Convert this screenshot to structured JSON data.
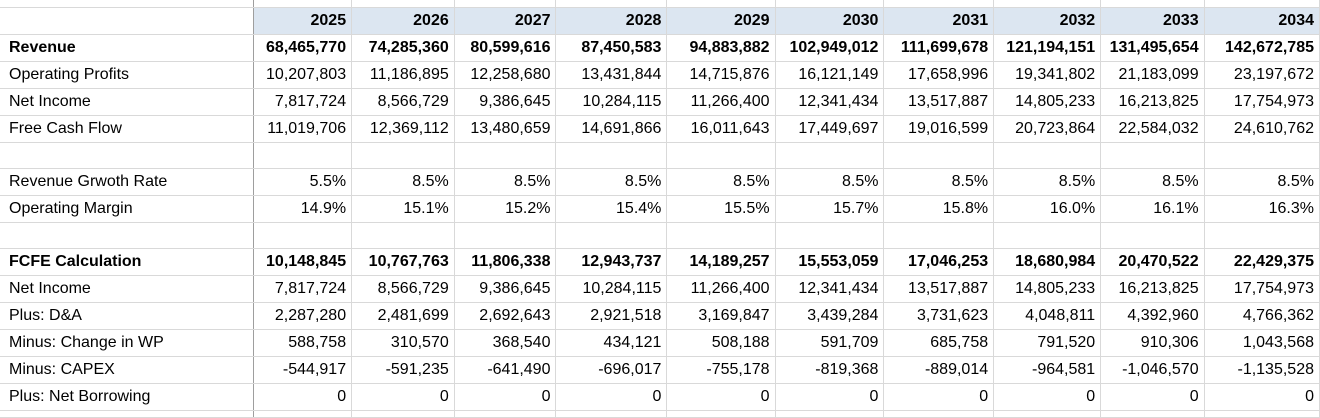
{
  "years": [
    "2025",
    "2026",
    "2027",
    "2028",
    "2029",
    "2030",
    "2031",
    "2032",
    "2033",
    "2034"
  ],
  "rows": [
    {
      "key": "revenue",
      "label": "Revenue",
      "bold": true,
      "values": [
        "68,465,770",
        "74,285,360",
        "80,599,616",
        "87,450,583",
        "94,883,882",
        "102,949,012",
        "111,699,678",
        "121,194,151",
        "131,495,654",
        "142,672,785"
      ]
    },
    {
      "key": "operating-profits",
      "label": "Operating Profits",
      "bold": false,
      "values": [
        "10,207,803",
        "11,186,895",
        "12,258,680",
        "13,431,844",
        "14,715,876",
        "16,121,149",
        "17,658,996",
        "19,341,802",
        "21,183,099",
        "23,197,672"
      ]
    },
    {
      "key": "net-income",
      "label": "Net Income",
      "bold": false,
      "values": [
        "7,817,724",
        "8,566,729",
        "9,386,645",
        "10,284,115",
        "11,266,400",
        "12,341,434",
        "13,517,887",
        "14,805,233",
        "16,213,825",
        "17,754,973"
      ]
    },
    {
      "key": "free-cash-flow",
      "label": "Free Cash Flow",
      "bold": false,
      "values": [
        "11,019,706",
        "12,369,112",
        "13,480,659",
        "14,691,866",
        "16,011,643",
        "17,449,697",
        "19,016,599",
        "20,723,864",
        "22,584,032",
        "24,610,762"
      ]
    },
    {
      "key": "blank-1",
      "label": "",
      "bold": false,
      "values": [
        "",
        "",
        "",
        "",
        "",
        "",
        "",
        "",
        "",
        ""
      ]
    },
    {
      "key": "revenue-growth-rate",
      "label": "Revenue Grwoth Rate",
      "bold": false,
      "values": [
        "5.5%",
        "8.5%",
        "8.5%",
        "8.5%",
        "8.5%",
        "8.5%",
        "8.5%",
        "8.5%",
        "8.5%",
        "8.5%"
      ]
    },
    {
      "key": "operating-margin",
      "label": "Operating Margin",
      "bold": false,
      "values": [
        "14.9%",
        "15.1%",
        "15.2%",
        "15.4%",
        "15.5%",
        "15.7%",
        "15.8%",
        "16.0%",
        "16.1%",
        "16.3%"
      ]
    },
    {
      "key": "blank-2",
      "label": "",
      "bold": false,
      "values": [
        "",
        "",
        "",
        "",
        "",
        "",
        "",
        "",
        "",
        ""
      ]
    },
    {
      "key": "fcfe-calculation",
      "label": "FCFE Calculation",
      "bold": true,
      "values": [
        "10,148,845",
        "10,767,763",
        "11,806,338",
        "12,943,737",
        "14,189,257",
        "15,553,059",
        "17,046,253",
        "18,680,984",
        "20,470,522",
        "22,429,375"
      ]
    },
    {
      "key": "fcfe-net-income",
      "label": "Net Income",
      "bold": false,
      "values": [
        "7,817,724",
        "8,566,729",
        "9,386,645",
        "10,284,115",
        "11,266,400",
        "12,341,434",
        "13,517,887",
        "14,805,233",
        "16,213,825",
        "17,754,973"
      ]
    },
    {
      "key": "plus-da",
      "label": "Plus: D&A",
      "bold": false,
      "values": [
        "2,287,280",
        "2,481,699",
        "2,692,643",
        "2,921,518",
        "3,169,847",
        "3,439,284",
        "3,731,623",
        "4,048,811",
        "4,392,960",
        "4,766,362"
      ]
    },
    {
      "key": "minus-change-in-wp",
      "label": "Minus: Change in WP",
      "bold": false,
      "values": [
        "588,758",
        "310,570",
        "368,540",
        "434,121",
        "508,188",
        "591,709",
        "685,758",
        "791,520",
        "910,306",
        "1,043,568"
      ]
    },
    {
      "key": "minus-capex",
      "label": "Minus: CAPEX",
      "bold": false,
      "values": [
        "-544,917",
        "-591,235",
        "-641,490",
        "-696,017",
        "-755,178",
        "-819,368",
        "-889,014",
        "-964,581",
        "-1,046,570",
        "-1,135,528"
      ]
    },
    {
      "key": "plus-net-borrowing",
      "label": "Plus: Net Borrowing",
      "bold": false,
      "values": [
        "0",
        "0",
        "0",
        "0",
        "0",
        "0",
        "0",
        "0",
        "0",
        "0"
      ]
    }
  ]
}
